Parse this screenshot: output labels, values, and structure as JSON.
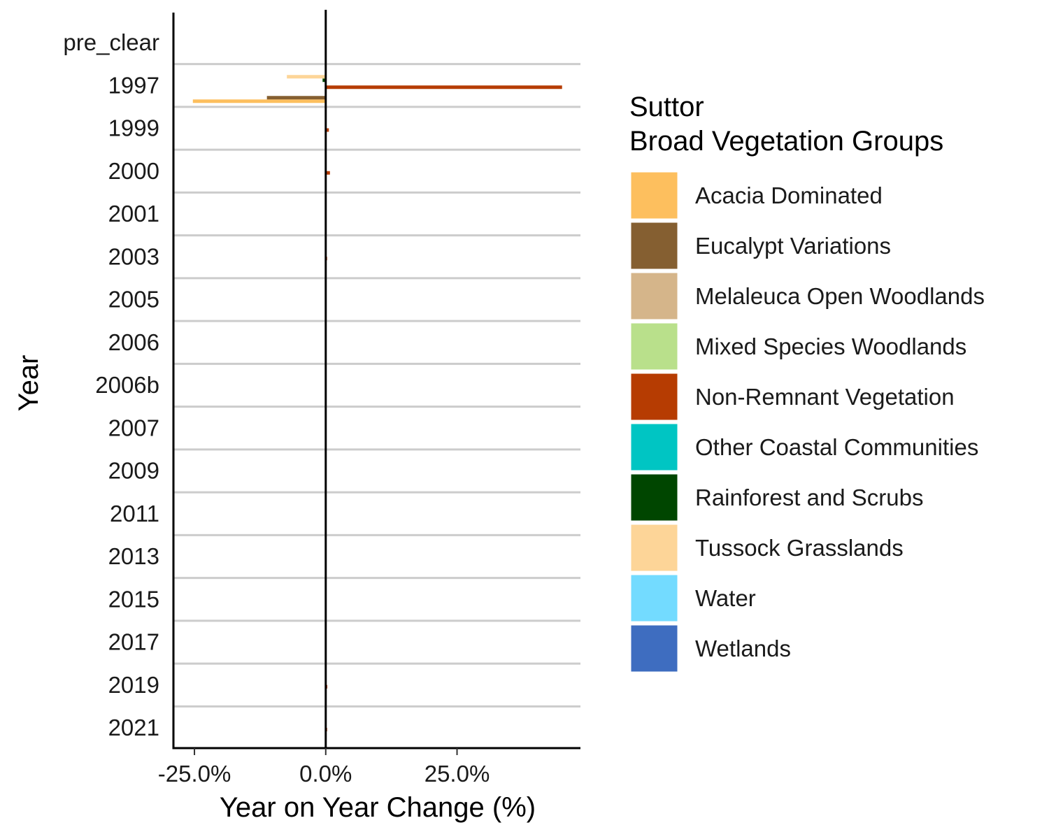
{
  "chart_data": {
    "type": "bar",
    "orientation": "horizontal",
    "xlabel": "Year on Year Change (%)",
    "ylabel": "Year",
    "xlim": [
      -29,
      48.5
    ],
    "xticks": [
      -25,
      0,
      25
    ],
    "xtick_labels": [
      "-25.0%",
      "0.0%",
      "25.0%"
    ],
    "categories": [
      "pre_clear",
      "1997",
      "1999",
      "2000",
      "2001",
      "2003",
      "2005",
      "2006",
      "2006b",
      "2007",
      "2009",
      "2011",
      "2013",
      "2015",
      "2017",
      "2019",
      "2021"
    ],
    "grid": "horizontal lines between categories",
    "legend": {
      "title_line1": "Suttor",
      "title_line2": "Broad Vegetation Groups",
      "position": "right"
    },
    "series": [
      {
        "name": "Acacia Dominated",
        "color": "#FDBF5E",
        "values": [
          null,
          -25.3,
          0,
          0,
          0,
          0,
          0,
          0,
          0,
          0,
          0,
          0,
          0,
          0,
          0,
          0,
          0
        ]
      },
      {
        "name": "Eucalypt Variations",
        "color": "#855F31",
        "values": [
          null,
          -11.2,
          0,
          0,
          0,
          0,
          0,
          0,
          0,
          0,
          0,
          0,
          0,
          0,
          0,
          0,
          0
        ]
      },
      {
        "name": "Melaleuca Open Woodlands",
        "color": "#D5B58A",
        "values": [
          null,
          0,
          0,
          0,
          0,
          0,
          0,
          0,
          0,
          0,
          0,
          0,
          0,
          0,
          0,
          0,
          0
        ]
      },
      {
        "name": "Mixed Species Woodlands",
        "color": "#B9E08B",
        "values": [
          null,
          0,
          0,
          0,
          0,
          0,
          0,
          0,
          0,
          0,
          0,
          0,
          0,
          0,
          0,
          0,
          0
        ]
      },
      {
        "name": "Non-Remnant Vegetation",
        "color": "#B63C02",
        "values": [
          null,
          45.0,
          0.6,
          0.8,
          0,
          0.2,
          0,
          0,
          0,
          0,
          0,
          0,
          0,
          0,
          0,
          0.3,
          0.1
        ]
      },
      {
        "name": "Other Coastal Communities",
        "color": "#00C5C3",
        "values": [
          null,
          0,
          0,
          0,
          0,
          0,
          0,
          0,
          0,
          0,
          0,
          0,
          0,
          0,
          0,
          0,
          0
        ]
      },
      {
        "name": "Rainforest and Scrubs",
        "color": "#004600",
        "values": [
          null,
          -0.6,
          0,
          0,
          0,
          0,
          0,
          0,
          0,
          0,
          0,
          0,
          0,
          0,
          0,
          0,
          0
        ]
      },
      {
        "name": "Tussock Grasslands",
        "color": "#FDD598",
        "values": [
          null,
          -7.4,
          0,
          0,
          0,
          0,
          0,
          0,
          0,
          0,
          0,
          0,
          0,
          0,
          0,
          0,
          0
        ]
      },
      {
        "name": "Water",
        "color": "#73DBFF",
        "values": [
          null,
          0,
          0,
          0,
          0,
          0,
          0,
          0,
          0,
          0,
          0,
          0,
          0,
          0,
          0,
          0,
          0
        ]
      },
      {
        "name": "Wetlands",
        "color": "#3E6DC0",
        "values": [
          null,
          0,
          0,
          0,
          0,
          0,
          0,
          0,
          0,
          0,
          0,
          0,
          0,
          0,
          0,
          0,
          0
        ]
      }
    ]
  }
}
